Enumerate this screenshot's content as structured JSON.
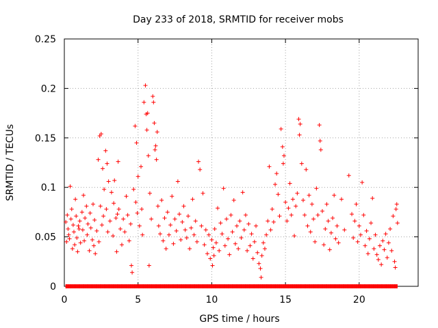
{
  "chart_data": {
    "type": "scatter",
    "title": "Day 233 of 2018, SRMTID for receiver mobs",
    "xlabel": "GPS time / hours",
    "ylabel": "SRMTID / TECUs",
    "xlim": [
      0,
      24
    ],
    "ylim": [
      0,
      0.25
    ],
    "grid": true,
    "x_ticks": [
      0,
      5,
      10,
      15,
      20
    ],
    "x_tick_labels": [
      "0",
      "5",
      "10",
      "15",
      "20"
    ],
    "y_ticks": [
      0,
      0.05,
      0.1,
      0.15,
      0.2,
      0.25
    ],
    "y_tick_labels": [
      "0",
      "0.05",
      "0.1",
      "0.15",
      "0.2",
      "0.25"
    ],
    "marker": "+",
    "color": "#ff0000",
    "series": [
      {
        "name": "SRMTID",
        "points": [
          [
            0.1,
            0.065
          ],
          [
            0.15,
            0.045
          ],
          [
            0.2,
            0.072
          ],
          [
            0.25,
            0.058
          ],
          [
            0.3,
            0.052
          ],
          [
            0.35,
            0.048
          ],
          [
            0.4,
            0.101
          ],
          [
            0.45,
            0.068
          ],
          [
            0.5,
            0.078
          ],
          [
            0.55,
            0.038
          ],
          [
            0.6,
            0.062
          ],
          [
            0.65,
            0.055
          ],
          [
            0.7,
            0.042
          ],
          [
            0.75,
            0.088
          ],
          [
            0.8,
            0.071
          ],
          [
            0.85,
            0.049
          ],
          [
            0.9,
            0.035
          ],
          [
            0.95,
            0.061
          ],
          [
            1.0,
            0.058
          ],
          [
            1.05,
            0.066
          ],
          [
            1.1,
            0.044
          ],
          [
            1.2,
            0.075
          ],
          [
            1.25,
            0.057
          ],
          [
            1.3,
            0.092
          ],
          [
            1.35,
            0.046
          ],
          [
            1.4,
            0.069
          ],
          [
            1.5,
            0.081
          ],
          [
            1.55,
            0.052
          ],
          [
            1.6,
            0.063
          ],
          [
            1.7,
            0.036
          ],
          [
            1.75,
            0.074
          ],
          [
            1.8,
            0.059
          ],
          [
            1.9,
            0.047
          ],
          [
            1.95,
            0.083
          ],
          [
            2.0,
            0.041
          ],
          [
            2.05,
            0.067
          ],
          [
            2.1,
            0.033
          ],
          [
            2.2,
            0.056
          ],
          [
            2.3,
            0.128
          ],
          [
            2.35,
            0.045
          ],
          [
            2.4,
            0.152
          ],
          [
            2.45,
            0.081
          ],
          [
            2.5,
            0.154
          ],
          [
            2.55,
            0.062
          ],
          [
            2.6,
            0.119
          ],
          [
            2.65,
            0.071
          ],
          [
            2.7,
            0.098
          ],
          [
            2.8,
            0.137
          ],
          [
            2.85,
            0.078
          ],
          [
            2.9,
            0.124
          ],
          [
            2.95,
            0.055
          ],
          [
            3.0,
            0.106
          ],
          [
            3.1,
            0.066
          ],
          [
            3.2,
            0.095
          ],
          [
            3.3,
            0.051
          ],
          [
            3.35,
            0.084
          ],
          [
            3.4,
            0.107
          ],
          [
            3.5,
            0.069
          ],
          [
            3.55,
            0.035
          ],
          [
            3.6,
            0.073
          ],
          [
            3.65,
            0.126
          ],
          [
            3.7,
            0.078
          ],
          [
            3.8,
            0.058
          ],
          [
            3.9,
            0.042
          ],
          [
            4.0,
            0.068
          ],
          [
            4.1,
            0.055
          ],
          [
            4.2,
            0.091
          ],
          [
            4.3,
            0.072
          ],
          [
            4.4,
            0.046
          ],
          [
            4.5,
            0.063
          ],
          [
            4.55,
            0.021
          ],
          [
            4.6,
            0.014
          ],
          [
            4.7,
            0.098
          ],
          [
            4.8,
            0.162
          ],
          [
            4.85,
            0.085
          ],
          [
            4.9,
            0.145
          ],
          [
            4.95,
            0.074
          ],
          [
            5.0,
            0.111
          ],
          [
            5.1,
            0.061
          ],
          [
            5.2,
            0.121
          ],
          [
            5.25,
            0.078
          ],
          [
            5.3,
            0.052
          ],
          [
            5.4,
            0.186
          ],
          [
            5.5,
            0.203
          ],
          [
            5.55,
            0.174
          ],
          [
            5.6,
            0.158
          ],
          [
            5.65,
            0.175
          ],
          [
            5.7,
            0.132
          ],
          [
            5.75,
            0.021
          ],
          [
            5.8,
            0.094
          ],
          [
            5.9,
            0.068
          ],
          [
            6.0,
            0.192
          ],
          [
            6.05,
            0.186
          ],
          [
            6.1,
            0.165
          ],
          [
            6.15,
            0.138
          ],
          [
            6.2,
            0.142
          ],
          [
            6.25,
            0.128
          ],
          [
            6.3,
            0.156
          ],
          [
            6.35,
            0.081
          ],
          [
            6.4,
            0.061
          ],
          [
            6.5,
            0.053
          ],
          [
            6.6,
            0.087
          ],
          [
            6.7,
            0.046
          ],
          [
            6.8,
            0.069
          ],
          [
            6.9,
            0.038
          ],
          [
            7.0,
            0.075
          ],
          [
            7.1,
            0.052
          ],
          [
            7.2,
            0.062
          ],
          [
            7.3,
            0.091
          ],
          [
            7.4,
            0.043
          ],
          [
            7.5,
            0.068
          ],
          [
            7.6,
            0.056
          ],
          [
            7.7,
            0.106
          ],
          [
            7.8,
            0.073
          ],
          [
            7.9,
            0.047
          ],
          [
            8.0,
            0.065
          ],
          [
            8.1,
            0.081
          ],
          [
            8.2,
            0.057
          ],
          [
            8.3,
            0.049
          ],
          [
            8.4,
            0.071
          ],
          [
            8.5,
            0.038
          ],
          [
            8.6,
            0.059
          ],
          [
            8.7,
            0.088
          ],
          [
            8.8,
            0.052
          ],
          [
            8.9,
            0.066
          ],
          [
            9.0,
            0.045
          ],
          [
            9.1,
            0.126
          ],
          [
            9.2,
            0.118
          ],
          [
            9.3,
            0.061
          ],
          [
            9.4,
            0.094
          ],
          [
            9.5,
            0.042
          ],
          [
            9.6,
            0.057
          ],
          [
            9.7,
            0.033
          ],
          [
            9.8,
            0.052
          ],
          [
            9.9,
            0.028
          ],
          [
            10.0,
            0.047
          ],
          [
            10.05,
            0.021
          ],
          [
            10.1,
            0.039
          ],
          [
            10.15,
            0.031
          ],
          [
            10.2,
            0.058
          ],
          [
            10.3,
            0.044
          ],
          [
            10.4,
            0.079
          ],
          [
            10.5,
            0.036
          ],
          [
            10.6,
            0.064
          ],
          [
            10.7,
            0.053
          ],
          [
            10.8,
            0.099
          ],
          [
            10.9,
            0.041
          ],
          [
            11.0,
            0.068
          ],
          [
            11.1,
            0.048
          ],
          [
            11.2,
            0.032
          ],
          [
            11.3,
            0.072
          ],
          [
            11.4,
            0.055
          ],
          [
            11.5,
            0.087
          ],
          [
            11.6,
            0.043
          ],
          [
            11.7,
            0.061
          ],
          [
            11.8,
            0.038
          ],
          [
            11.9,
            0.066
          ],
          [
            12.0,
            0.049
          ],
          [
            12.1,
            0.095
          ],
          [
            12.2,
            0.057
          ],
          [
            12.3,
            0.072
          ],
          [
            12.4,
            0.036
          ],
          [
            12.5,
            0.063
          ],
          [
            12.6,
            0.041
          ],
          [
            12.7,
            0.053
          ],
          [
            12.8,
            0.028
          ],
          [
            12.9,
            0.045
          ],
          [
            13.0,
            0.061
          ],
          [
            13.1,
            0.034
          ],
          [
            13.2,
            0.023
          ],
          [
            13.3,
            0.018
          ],
          [
            13.35,
            0.009
          ],
          [
            13.4,
            0.031
          ],
          [
            13.5,
            0.044
          ],
          [
            13.6,
            0.038
          ],
          [
            13.7,
            0.052
          ],
          [
            13.8,
            0.066
          ],
          [
            13.9,
            0.121
          ],
          [
            14.0,
            0.057
          ],
          [
            14.1,
            0.078
          ],
          [
            14.2,
            0.065
          ],
          [
            14.3,
            0.103
          ],
          [
            14.4,
            0.114
          ],
          [
            14.5,
            0.093
          ],
          [
            14.6,
            0.071
          ],
          [
            14.7,
            0.159
          ],
          [
            14.8,
            0.141
          ],
          [
            14.85,
            0.124
          ],
          [
            14.9,
            0.132
          ],
          [
            15.0,
            0.085
          ],
          [
            15.1,
            0.066
          ],
          [
            15.2,
            0.079
          ],
          [
            15.3,
            0.104
          ],
          [
            15.4,
            0.072
          ],
          [
            15.5,
            0.088
          ],
          [
            15.6,
            0.051
          ],
          [
            15.7,
            0.081
          ],
          [
            15.8,
            0.094
          ],
          [
            15.9,
            0.169
          ],
          [
            15.95,
            0.153
          ],
          [
            16.0,
            0.164
          ],
          [
            16.1,
            0.124
          ],
          [
            16.2,
            0.087
          ],
          [
            16.3,
            0.072
          ],
          [
            16.4,
            0.118
          ],
          [
            16.5,
            0.061
          ],
          [
            16.6,
            0.092
          ],
          [
            16.7,
            0.055
          ],
          [
            16.8,
            0.083
          ],
          [
            16.9,
            0.068
          ],
          [
            17.0,
            0.045
          ],
          [
            17.1,
            0.099
          ],
          [
            17.2,
            0.072
          ],
          [
            17.3,
            0.163
          ],
          [
            17.35,
            0.147
          ],
          [
            17.4,
            0.138
          ],
          [
            17.5,
            0.076
          ],
          [
            17.6,
            0.042
          ],
          [
            17.7,
            0.058
          ],
          [
            17.8,
            0.083
          ],
          [
            17.9,
            0.066
          ],
          [
            18.0,
            0.037
          ],
          [
            18.1,
            0.054
          ],
          [
            18.2,
            0.069
          ],
          [
            18.3,
            0.092
          ],
          [
            18.4,
            0.048
          ],
          [
            18.5,
            0.061
          ],
          [
            18.6,
            0.044
          ],
          [
            18.8,
            0.088
          ],
          [
            19.0,
            0.057
          ],
          [
            19.3,
            0.112
          ],
          [
            19.5,
            0.073
          ],
          [
            19.6,
            0.049
          ],
          [
            19.7,
            0.066
          ],
          [
            19.8,
            0.083
          ],
          [
            19.9,
            0.045
          ],
          [
            20.0,
            0.061
          ],
          [
            20.1,
            0.052
          ],
          [
            20.2,
            0.105
          ],
          [
            20.3,
            0.072
          ],
          [
            20.4,
            0.041
          ],
          [
            20.5,
            0.056
          ],
          [
            20.6,
            0.033
          ],
          [
            20.7,
            0.048
          ],
          [
            20.8,
            0.064
          ],
          [
            20.9,
            0.089
          ],
          [
            21.0,
            0.038
          ],
          [
            21.1,
            0.052
          ],
          [
            21.2,
            0.032
          ],
          [
            21.3,
            0.027
          ],
          [
            21.4,
            0.041
          ],
          [
            21.5,
            0.022
          ],
          [
            21.6,
            0.046
          ],
          [
            21.7,
            0.037
          ],
          [
            21.8,
            0.053
          ],
          [
            21.9,
            0.029
          ],
          [
            22.0,
            0.044
          ],
          [
            22.1,
            0.058
          ],
          [
            22.2,
            0.036
          ],
          [
            22.3,
            0.071
          ],
          [
            22.4,
            0.025
          ],
          [
            22.45,
            0.019
          ],
          [
            22.5,
            0.078
          ],
          [
            22.55,
            0.083
          ],
          [
            22.6,
            0.064
          ]
        ]
      }
    ]
  }
}
